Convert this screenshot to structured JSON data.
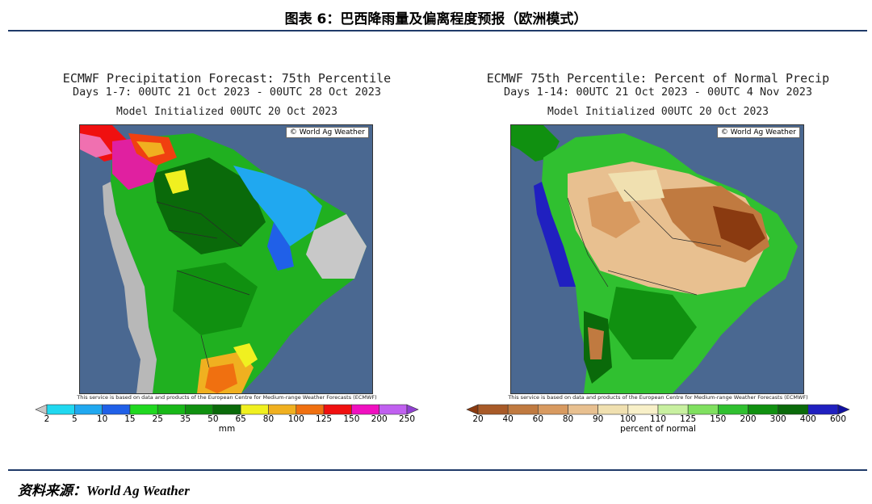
{
  "figure": {
    "title": "图表 6：巴西降雨量及偏离程度预报（欧洲模式）",
    "source": "资料来源：World Ag Weather"
  },
  "maps": [
    {
      "title_line1": "ECMWF Precipitation Forecast: 75th Percentile",
      "title_line2": "Days 1-7: 00UTC 21 Oct 2023 - 00UTC 28 Oct 2023",
      "title_line3": "Model Initialized 00UTC 20 Oct 2023",
      "credit": "© World Ag Weather",
      "disclaimer": "This service is based on data and products of the European Centre for Medium-range Weather Forecasts (ECMWF)",
      "legend_ticks": [
        "2",
        "5",
        "10",
        "15",
        "25",
        "35",
        "50",
        "65",
        "80",
        "100",
        "125",
        "150",
        "200",
        "250"
      ],
      "legend_colors": [
        "#c8c8c8",
        "#20d8f0",
        "#20a8f0",
        "#2060e8",
        "#20d820",
        "#18b818",
        "#109010",
        "#0a6a0a",
        "#f0f020",
        "#f0b020",
        "#f07010",
        "#f01010",
        "#f010c0",
        "#c060f0",
        "#9040d0"
      ],
      "unit": "mm",
      "map_type": "precipitation",
      "ocean_color": "#4a6891"
    },
    {
      "title_line1": "ECMWF 75th Percentile: Percent of Normal Precip",
      "title_line2": "Days 1-14: 00UTC 21 Oct 2023 - 00UTC 4 Nov 2023",
      "title_line3": "Model Initialized 00UTC 20 Oct 2023",
      "credit": "© World Ag Weather",
      "disclaimer": "This service is based on data and products of the European Centre for Medium-range Weather Forecasts (ECMWF)",
      "legend_ticks": [
        "20",
        "40",
        "60",
        "80",
        "90",
        "100",
        "110",
        "125",
        "150",
        "200",
        "300",
        "400",
        "600"
      ],
      "legend_colors": [
        "#8a3a10",
        "#a85a28",
        "#c07a40",
        "#d89a60",
        "#e8c090",
        "#f0e0b0",
        "#f8f0c8",
        "#c8f0a0",
        "#80e060",
        "#30c030",
        "#109010",
        "#0a6a0a",
        "#2020c0",
        "#1010a0"
      ],
      "unit": "percent of normal",
      "map_type": "percent",
      "ocean_color": "#4a6891"
    }
  ]
}
